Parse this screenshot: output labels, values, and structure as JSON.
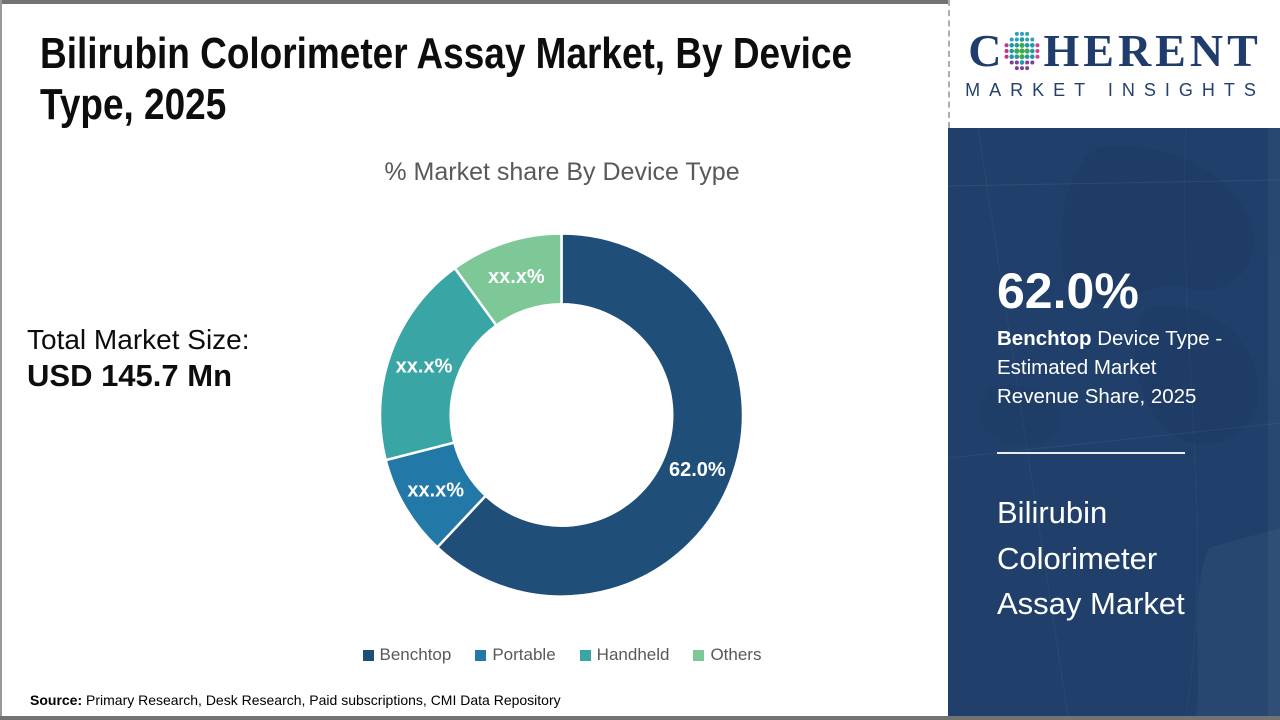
{
  "header": {
    "title_line1": "Bilirubin Colorimeter Assay Market, By Device",
    "title_line2": "Type, 2025"
  },
  "total_market": {
    "label": "Total Market Size:",
    "value": "USD 145.7 Mn"
  },
  "chart_data": {
    "type": "pie",
    "subtype": "donut",
    "title": "% Market share By Device Type",
    "categories": [
      "Benchtop",
      "Portable",
      "Handheld",
      "Others"
    ],
    "values": [
      62.0,
      9.0,
      19.0,
      10.0
    ],
    "value_labels": [
      "62.0%",
      "xx.x%",
      "xx.x%",
      "xx.x%"
    ],
    "colors": [
      "#1f4e79",
      "#2279a8",
      "#3aa5a5",
      "#7dc896"
    ],
    "legend_position": "bottom",
    "inner_radius_ratio": 0.61
  },
  "source": {
    "label": "Source:",
    "text": " Primary Research, Desk Research, Paid subscriptions, CMI Data Repository"
  },
  "sidebar": {
    "stat_value": "62.0%",
    "stat_desc_bold": "Benchtop",
    "stat_desc_rest": " Device Type - Estimated Market Revenue Share, 2025",
    "market_name": "Bilirubin Colorimeter Assay Market",
    "bg_color": "#20406b"
  },
  "logo": {
    "c": "C",
    "rest": "HERENT",
    "subtitle": "MARKET INSIGHTS"
  }
}
